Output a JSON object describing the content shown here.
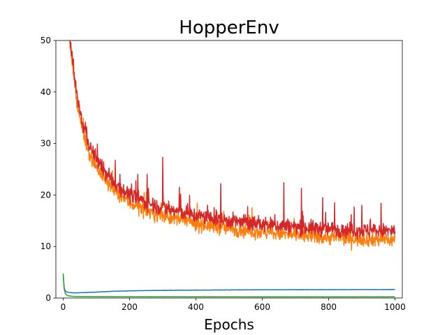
{
  "chart_data": {
    "type": "line",
    "title": "HopperEnv",
    "xlabel": "Epochs",
    "ylabel": "",
    "xlim": [
      -22,
      1022
    ],
    "ylim": [
      0,
      50
    ],
    "xticks": [
      0,
      200,
      400,
      600,
      800,
      1000
    ],
    "yticks": [
      0,
      10,
      20,
      30,
      40,
      50
    ],
    "grid": false,
    "legend": "none",
    "series": [
      {
        "color": "#1f77b4",
        "x": [
          0,
          3,
          6,
          10,
          15,
          20,
          30,
          40,
          60,
          100,
          150,
          200,
          300,
          400,
          500,
          600,
          700,
          800,
          900,
          1000
        ],
        "y": [
          4.7,
          2.0,
          1.4,
          1.2,
          1.1,
          1.05,
          1.0,
          1.0,
          1.05,
          1.15,
          1.3,
          1.4,
          1.48,
          1.53,
          1.57,
          1.6,
          1.62,
          1.63,
          1.64,
          1.65
        ],
        "noise": 0.03
      },
      {
        "color": "#ff7f0e",
        "x": [
          20,
          30,
          40,
          50,
          60,
          80,
          100,
          130,
          160,
          200,
          250,
          300,
          400,
          500,
          600,
          700,
          800,
          900,
          1000
        ],
        "y": [
          50,
          44,
          38.5,
          35,
          32,
          28,
          25.5,
          22.5,
          20.5,
          18.5,
          17.0,
          16.0,
          14.5,
          13.5,
          12.8,
          12.2,
          11.8,
          11.5,
          11.3
        ],
        "noise": 1.4,
        "spikes": []
      },
      {
        "color": "#2ca02c",
        "x": [
          0,
          3,
          6,
          10,
          15,
          20,
          30,
          40,
          60,
          100,
          200,
          400,
          600,
          800,
          1000
        ],
        "y": [
          4.7,
          1.8,
          1.0,
          0.6,
          0.45,
          0.38,
          0.33,
          0.3,
          0.28,
          0.27,
          0.25,
          0.24,
          0.23,
          0.23,
          0.23
        ],
        "noise": 0.01
      },
      {
        "color": "#d62728",
        "x": [
          20,
          30,
          40,
          50,
          60,
          80,
          100,
          130,
          160,
          200,
          250,
          300,
          400,
          500,
          600,
          700,
          800,
          900,
          1000
        ],
        "y": [
          50,
          45,
          40,
          36.5,
          33.5,
          29.5,
          27,
          24,
          22,
          20,
          18.6,
          17.5,
          16,
          15,
          14.3,
          13.8,
          13.4,
          13.1,
          13
        ],
        "noise": 1.4,
        "spikes": [
          {
            "x": 225,
            "y": 24
          },
          {
            "x": 253,
            "y": 24
          },
          {
            "x": 300,
            "y": 27.3
          },
          {
            "x": 350,
            "y": 21.5
          },
          {
            "x": 475,
            "y": 22.2
          },
          {
            "x": 665,
            "y": 22.4
          },
          {
            "x": 718,
            "y": 21.3
          },
          {
            "x": 782,
            "y": 19.5
          },
          {
            "x": 818,
            "y": 18.5
          },
          {
            "x": 900,
            "y": 18.0
          },
          {
            "x": 958,
            "y": 18.4
          }
        ]
      }
    ]
  }
}
